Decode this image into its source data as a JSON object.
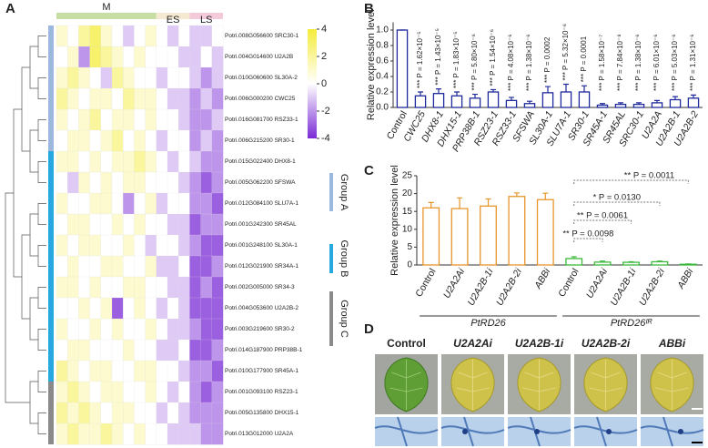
{
  "chart_data": [
    {
      "type": "heatmap",
      "panel": "A",
      "column_groups": [
        "M",
        "ES",
        "LS"
      ],
      "row_groups": [
        "Group A",
        "Group B",
        "Group C"
      ],
      "rows": [
        "Potri.008G056600 SRC30-1",
        "Potri.004G014600 U2A2B",
        "Potri.010G060600 SL30A-2",
        "Potri.006G000200 CWC25",
        "Potri.016G081700 RSZ33-1",
        "Potri.006G215200 SR30-1",
        "Potri.015G022400 DHX8-1",
        "Potri.005G062200 SFSWA",
        "Potri.012G084100 SLU7A-1",
        "Potri.001G242300 SR45AL",
        "Potri.001G248100 SL30A-1",
        "Potri.012G021900 SR34A-1",
        "Potri.002G005000 SR34-3",
        "Potri.004G053600 U2A2B-2",
        "Potri.003G219600 SR30-2",
        "Potri.014G187900 PRP38B-1",
        "Potri.010G177900 SR45A-1",
        "Potri.001G093100 RSZ23-1",
        "Potri.005G135800 DHX15-1",
        "Potri.013G012000 U2A2A"
      ],
      "matrix": [
        [
          1,
          0,
          2,
          3,
          1,
          0,
          -1,
          0,
          1,
          0,
          -1,
          0,
          -1,
          -1,
          0
        ],
        [
          0,
          1,
          -2,
          3,
          2,
          1,
          0,
          1,
          0,
          0,
          0,
          -1,
          -1,
          0,
          -1
        ],
        [
          1,
          2,
          1,
          0,
          -1,
          2,
          1,
          0,
          0,
          -1,
          0,
          0,
          -1,
          -2,
          -1
        ],
        [
          2,
          1,
          0,
          1,
          1,
          0,
          2,
          1,
          1,
          0,
          -1,
          -1,
          -2,
          -1,
          -2
        ],
        [
          1,
          0,
          1,
          2,
          0,
          1,
          1,
          0,
          1,
          0,
          0,
          -1,
          -2,
          -2,
          -1
        ],
        [
          0,
          1,
          1,
          0,
          1,
          2,
          0,
          1,
          0,
          -1,
          0,
          0,
          -2,
          -1,
          -2
        ],
        [
          1,
          1,
          0,
          1,
          0,
          1,
          1,
          2,
          1,
          0,
          -1,
          0,
          -1,
          -2,
          -2
        ],
        [
          0,
          -1,
          1,
          0,
          1,
          0,
          1,
          1,
          0,
          0,
          0,
          -1,
          -2,
          -3,
          -2
        ],
        [
          1,
          0,
          0,
          1,
          1,
          0,
          -2,
          0,
          1,
          -1,
          0,
          0,
          -2,
          -2,
          -3
        ],
        [
          0,
          1,
          1,
          0,
          0,
          1,
          0,
          1,
          0,
          0,
          -1,
          -1,
          -3,
          -2,
          -2
        ],
        [
          1,
          0,
          1,
          1,
          0,
          0,
          1,
          0,
          -1,
          0,
          0,
          -1,
          -2,
          -3,
          -3
        ],
        [
          0,
          1,
          0,
          0,
          1,
          1,
          0,
          0,
          1,
          -1,
          -1,
          0,
          -3,
          -3,
          -2
        ],
        [
          1,
          1,
          0,
          1,
          0,
          0,
          1,
          1,
          0,
          0,
          -1,
          -1,
          -3,
          -2,
          -3
        ],
        [
          0,
          0,
          1,
          0,
          1,
          -3,
          0,
          1,
          0,
          -1,
          0,
          -1,
          -3,
          -3,
          -3
        ],
        [
          1,
          0,
          0,
          1,
          0,
          1,
          0,
          0,
          1,
          0,
          -1,
          -1,
          -2,
          -3,
          -3
        ],
        [
          0,
          1,
          1,
          0,
          0,
          0,
          1,
          0,
          0,
          -1,
          -1,
          0,
          -3,
          -3,
          -2
        ],
        [
          2,
          1,
          0,
          1,
          1,
          0,
          0,
          1,
          1,
          0,
          0,
          -1,
          -2,
          -2,
          -3
        ],
        [
          1,
          2,
          1,
          0,
          1,
          1,
          0,
          0,
          1,
          0,
          -1,
          0,
          -2,
          -3,
          -2
        ],
        [
          2,
          1,
          2,
          1,
          0,
          1,
          1,
          0,
          0,
          -1,
          0,
          -1,
          -2,
          -2,
          -2
        ],
        [
          1,
          2,
          1,
          1,
          2,
          1,
          0,
          1,
          0,
          0,
          -1,
          -1,
          -1,
          -2,
          -2
        ]
      ],
      "zlim": [
        -4,
        4
      ],
      "zticks": [
        4,
        2,
        0,
        -2,
        -4
      ],
      "colors": {
        "high": "#f4ec3a",
        "mid": "#ffffff",
        "low": "#7a2bd6"
      }
    },
    {
      "type": "bar",
      "panel": "B",
      "y_label": "Relative expression level",
      "categories": [
        "Control",
        "CWC25",
        "DHX8-1",
        "DHX15-1",
        "PRP38B-1",
        "RSZ23-1",
        "RSZ33-1",
        "SFSWA",
        "SL30A-1",
        "SLU7A-1",
        "SR30-1",
        "SR45A-1",
        "SR45AL",
        "SRC30-1",
        "U2A2A",
        "U2A2B-1",
        "U2A2B-2"
      ],
      "values": [
        1.0,
        0.15,
        0.18,
        0.15,
        0.12,
        0.2,
        0.09,
        0.05,
        0.19,
        0.2,
        0.2,
        0.03,
        0.04,
        0.04,
        0.06,
        0.1,
        0.12
      ],
      "errors": [
        0,
        0.05,
        0.06,
        0.05,
        0.05,
        0.03,
        0.04,
        0.03,
        0.08,
        0.1,
        0.08,
        0.02,
        0.02,
        0.02,
        0.03,
        0.04,
        0.04
      ],
      "annotations": [
        null,
        "*** P = 1.62×10⁻⁵",
        "*** P = 1.43×10⁻⁵",
        "*** P = 1.83×10⁻⁵",
        "*** P = 5.80×10⁻⁶",
        "*** P = 1.54×10⁻⁶",
        "*** P = 4.08×10⁻⁶",
        "*** P = 1.38×10⁻⁶",
        "*** P = 0.0002",
        "*** P = 5.32×10⁻⁶",
        "*** P = 0.0001",
        "*** P = 1.58×10⁻⁷",
        "*** P = 7.84×10⁻⁸",
        "*** P = 1.38×10⁻⁶",
        "*** P = 6.01×10⁻⁶",
        "*** P = 5.03×10⁻⁶",
        "*** P = 1.31×10⁻⁶"
      ],
      "color": "#1f2a9c",
      "ylim": [
        0,
        1.1
      ],
      "yticks": [
        {
          "value": 0,
          "label": "0.0"
        },
        0.2,
        0.4,
        0.6,
        0.8,
        {
          "value": 1,
          "label": "1.0"
        }
      ]
    },
    {
      "type": "bar",
      "panel": "C",
      "y_label": "Relative expression level",
      "categories": [
        "Control",
        "U2A2Ai",
        "U2A2B-1i",
        "U2A2B-2i",
        "ABBi",
        "Control",
        "U2A2Ai",
        "U2A2B-1i",
        "U2A2B-2i",
        "ABBi"
      ],
      "groups": [
        "PtRD26",
        "PtRD26ᴵᴿ"
      ],
      "series": [
        {
          "color": "#e8952b",
          "values": [
            16.0,
            15.8,
            16.5,
            19.2,
            18.3,
            null,
            null,
            null,
            null,
            null
          ],
          "errors": [
            1.5,
            3,
            2,
            1,
            1.8,
            null,
            null,
            null,
            null,
            null
          ]
        },
        {
          "color": "#3cb93c",
          "values": [
            null,
            null,
            null,
            null,
            null,
            1.8,
            0.8,
            0.75,
            0.9,
            0.2
          ],
          "errors": [
            null,
            null,
            null,
            null,
            null,
            0.5,
            0.3,
            0.15,
            0.2,
            0.1
          ]
        }
      ],
      "annotations": [
        "** P = 0.0098",
        "** P = 0.0061",
        "* P = 0.0130",
        "** P = 0.0011"
      ],
      "ylim": [
        0,
        25
      ],
      "yticks": [
        0,
        5,
        10,
        15,
        20,
        25
      ]
    }
  ],
  "figure_d": {
    "panel": "D",
    "labels": [
      "Control",
      "U2A2Ai",
      "U2A2B-1i",
      "U2A2B-2i",
      "ABBi"
    ]
  }
}
